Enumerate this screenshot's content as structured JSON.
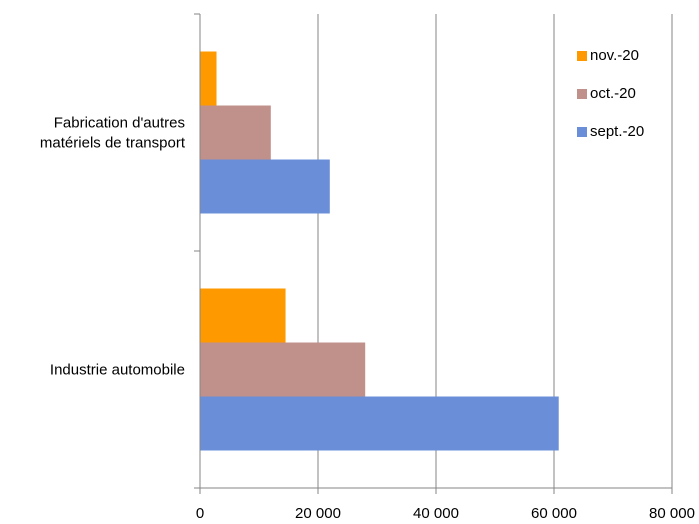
{
  "chart_data": {
    "type": "bar",
    "orientation": "horizontal",
    "categories": [
      "Fabrication d'autres matériels de transport",
      "Industrie automobile"
    ],
    "category_label_lines": [
      [
        "Fabrication d'autres",
        "matériels de transport"
      ],
      [
        "Industrie automobile"
      ]
    ],
    "series": [
      {
        "name": "nov.-20",
        "color": "#FF9900",
        "values": [
          2800,
          14500
        ]
      },
      {
        "name": "oct.-20",
        "color": "#C0908A",
        "values": [
          12000,
          28000
        ]
      },
      {
        "name": "sept.-20",
        "color": "#6A8FD8",
        "values": [
          22000,
          60800
        ]
      }
    ],
    "xlim": [
      0,
      80000
    ],
    "x_ticks": [
      0,
      20000,
      40000,
      60000,
      80000
    ],
    "x_tick_labels": [
      "0",
      "20 000",
      "40 000",
      "60 000",
      "80 000"
    ],
    "title": "",
    "xlabel": "",
    "ylabel": "",
    "grid": "vertical",
    "legend_position": "top-right"
  }
}
